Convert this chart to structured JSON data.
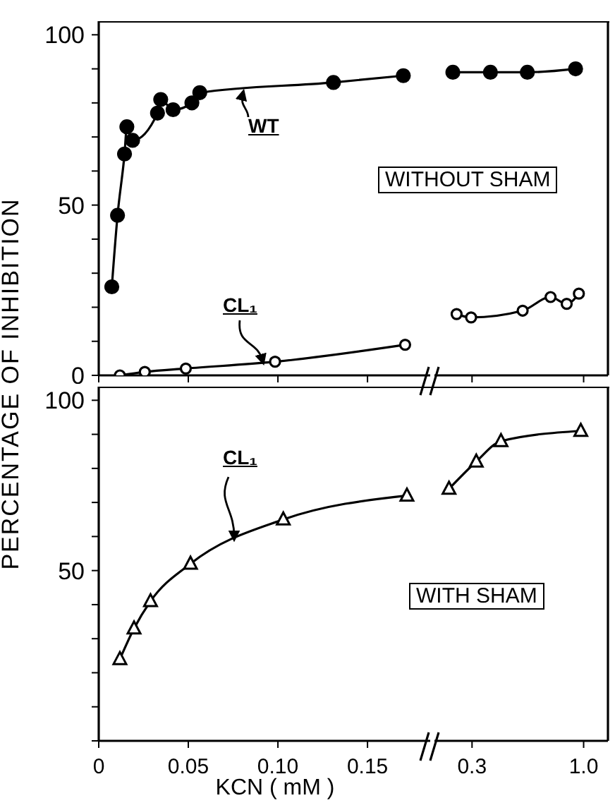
{
  "chart_data": [
    {
      "type": "line",
      "ylabel": "PERCENTAGE OF INHIBITION",
      "annotations": [
        "WITHOUT SHAM"
      ],
      "xlim": [
        0,
        0.185
      ],
      "xticks": [
        {
          "value": 0,
          "label": null
        },
        {
          "value": 0.05,
          "label": null
        },
        {
          "value": 0.1,
          "label": null
        },
        {
          "value": 0.15,
          "label": null
        }
      ],
      "ylim": [
        0,
        104
      ],
      "yticks": [
        0,
        {
          "value": 10,
          "label": null
        },
        {
          "value": 20,
          "label": null
        },
        {
          "value": 30,
          "label": null
        },
        {
          "value": 40,
          "label": null
        },
        50,
        {
          "value": 60,
          "label": null
        },
        {
          "value": 70,
          "label": null
        },
        {
          "value": 80,
          "label": null
        },
        {
          "value": 90,
          "label": null
        },
        100
      ],
      "tick_labels": "y",
      "marker": "circle",
      "grid": false,
      "series": [
        {
          "name": "WT",
          "color": "#000000",
          "x": [
            0.0073,
            0.0105,
            0.0144,
            0.0157,
            0.0189,
            0.0328,
            0.0346,
            0.0415,
            0.052,
            0.0564,
            0.131,
            0.17
          ],
          "values": [
            26,
            47,
            65,
            73,
            69,
            77,
            81,
            78,
            80,
            83,
            86,
            88
          ]
        },
        {
          "name": "CL₁",
          "color": "#000000",
          "x": [
            0.0118,
            0.0257,
            0.0486,
            0.0984,
            0.171
          ],
          "values": [
            0,
            1,
            2,
            4,
            9
          ]
        }
      ]
    },
    {
      "type": "line",
      "xlim": [
        0.2,
        1.3
      ],
      "xticks": [
        {
          "value": 0.3,
          "label": null
        },
        {
          "value": 1.0,
          "label": null
        }
      ],
      "ylim": [
        0,
        104
      ],
      "log": "x",
      "tick_labels": false,
      "marker": "circle",
      "grid": false,
      "legend": false,
      "series": [
        {
          "color": "#000000",
          "x": [
            0.244,
            0.366,
            0.545,
            0.917
          ],
          "values": [
            89,
            89,
            89,
            90
          ]
        },
        {
          "color": "#000000",
          "x": [
            0.254,
            0.297,
            0.518,
            0.7,
            0.833,
            0.95
          ],
          "values": [
            18,
            17,
            19,
            23,
            21,
            24
          ]
        }
      ]
    },
    {
      "type": "line",
      "xlabel": "KCN ( mM )",
      "annotations": [
        "WITH SHAM"
      ],
      "xlim": [
        0,
        0.185
      ],
      "xticks": [
        0,
        {
          "value": 0.05,
          "label": "0.05"
        },
        {
          "value": 0.1,
          "label": "0.10"
        },
        0.15
      ],
      "ylim": [
        0,
        104
      ],
      "yticks": [
        {
          "value": 0,
          "label": null
        },
        {
          "value": 10,
          "label": null
        },
        {
          "value": 20,
          "label": null
        },
        {
          "value": 30,
          "label": null
        },
        {
          "value": 40,
          "label": null
        },
        50,
        {
          "value": 60,
          "label": null
        },
        {
          "value": 70,
          "label": null
        },
        {
          "value": 80,
          "label": null
        },
        {
          "value": 90,
          "label": null
        },
        100
      ],
      "marker": "triangle",
      "grid": false,
      "legend": false,
      "series": [
        {
          "name": "CL₁",
          "color": "#000000",
          "x": [
            0.0118,
            0.0197,
            0.0289,
            0.0512,
            0.103,
            0.172
          ],
          "values": [
            24,
            33,
            41,
            52,
            65,
            72
          ]
        }
      ]
    },
    {
      "type": "line",
      "xlim": [
        0.2,
        1.3
      ],
      "xticks": [
        0.3,
        {
          "value": 1.0,
          "label": "1.0"
        }
      ],
      "ylim": [
        0,
        104
      ],
      "log": "x",
      "tick_labels": "x",
      "marker": "triangle",
      "grid": false,
      "legend": false,
      "series": [
        {
          "color": "#000000",
          "x": [
            0.234,
            0.314,
            0.41,
            0.97
          ],
          "values": [
            74,
            82,
            88,
            91
          ]
        }
      ]
    }
  ]
}
